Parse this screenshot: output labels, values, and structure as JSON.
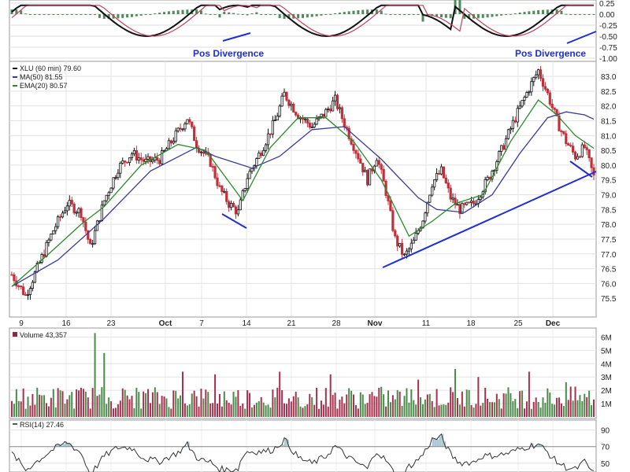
{
  "chart_data": [
    {
      "type": "histogram-oscillator",
      "ylim": [
        -1.0,
        0.25
      ],
      "ticks": [
        "0.25",
        "0.00",
        "-0.25",
        "-0.50",
        "-0.75",
        "-1.00"
      ],
      "annotations": [
        "Pos Divergence",
        "Pos Divergence"
      ]
    },
    {
      "type": "candlestick",
      "legend": [
        {
          "label": "XLU (60 min) 79.60",
          "color": "#111111"
        },
        {
          "label": "MA(50) 81.55",
          "color": "#3a3a9a"
        },
        {
          "label": "EMA(20) 80.57",
          "color": "#2a8a2a"
        }
      ],
      "ylim": [
        75.0,
        83.4
      ],
      "yticks": [
        "83.0",
        "82.5",
        "82.0",
        "81.5",
        "81.0",
        "80.5",
        "80.0",
        "79.5",
        "79.0",
        "78.5",
        "78.0",
        "77.5",
        "77.0",
        "76.5",
        "76.0",
        "75.5"
      ],
      "xticks": [
        "9",
        "16",
        "23",
        "Oct",
        "7",
        "14",
        "21",
        "28",
        "Nov",
        "11",
        "18",
        "25",
        "Dec"
      ],
      "price_path": [
        [
          0,
          76.3
        ],
        [
          3,
          75.6
        ],
        [
          6,
          76.7
        ],
        [
          9,
          77.8
        ],
        [
          12,
          78.7
        ],
        [
          15,
          78.4
        ],
        [
          17,
          77.2
        ],
        [
          20,
          78.8
        ],
        [
          23,
          79.9
        ],
        [
          26,
          80.4
        ],
        [
          29,
          80.1
        ],
        [
          32,
          80.2
        ],
        [
          35,
          80.9
        ],
        [
          38,
          81.6
        ],
        [
          40,
          80.7
        ],
        [
          43,
          80.1
        ],
        [
          45,
          79.2
        ],
        [
          47,
          78.7
        ],
        [
          49,
          78.4
        ],
        [
          51,
          79.6
        ],
        [
          54,
          80.5
        ],
        [
          57,
          81.5
        ],
        [
          59,
          82.4
        ],
        [
          62,
          81.7
        ],
        [
          65,
          81.3
        ],
        [
          68,
          81.8
        ],
        [
          70,
          82.2
        ],
        [
          72,
          81.4
        ],
        [
          75,
          80.3
        ],
        [
          77,
          79.5
        ],
        [
          79,
          80.3
        ],
        [
          81,
          79.1
        ],
        [
          83,
          77.5
        ],
        [
          85,
          76.9
        ],
        [
          87,
          77.4
        ],
        [
          89,
          78.2
        ],
        [
          91,
          79.4
        ],
        [
          93,
          79.8
        ],
        [
          95,
          78.9
        ],
        [
          97,
          78.5
        ],
        [
          100,
          78.7
        ],
        [
          103,
          79.5
        ],
        [
          106,
          80.5
        ],
        [
          109,
          81.6
        ],
        [
          112,
          82.6
        ],
        [
          114,
          83.2
        ],
        [
          116,
          82.4
        ],
        [
          118,
          81.5
        ],
        [
          120,
          80.8
        ],
        [
          122,
          80.3
        ],
        [
          124,
          80.6
        ],
        [
          126,
          79.6
        ]
      ],
      "ma50_path": [
        [
          0,
          75.9
        ],
        [
          10,
          76.8
        ],
        [
          20,
          78.2
        ],
        [
          30,
          79.8
        ],
        [
          40,
          80.6
        ],
        [
          44,
          80.3
        ],
        [
          52,
          79.9
        ],
        [
          58,
          80.3
        ],
        [
          65,
          81.2
        ],
        [
          72,
          81.3
        ],
        [
          80,
          80.2
        ],
        [
          88,
          78.9
        ],
        [
          92,
          78.5
        ],
        [
          98,
          78.4
        ],
        [
          104,
          79.0
        ],
        [
          110,
          80.4
        ],
        [
          116,
          81.6
        ],
        [
          120,
          81.8
        ],
        [
          124,
          81.7
        ],
        [
          126,
          81.55
        ]
      ],
      "ema20_path": [
        [
          0,
          75.9
        ],
        [
          8,
          77.0
        ],
        [
          15,
          78.0
        ],
        [
          20,
          78.6
        ],
        [
          28,
          80.0
        ],
        [
          36,
          80.7
        ],
        [
          42,
          80.5
        ],
        [
          50,
          78.8
        ],
        [
          56,
          80.6
        ],
        [
          62,
          81.6
        ],
        [
          68,
          81.6
        ],
        [
          74,
          80.8
        ],
        [
          80,
          79.5
        ],
        [
          86,
          77.6
        ],
        [
          91,
          78.1
        ],
        [
          96,
          78.7
        ],
        [
          102,
          79.0
        ],
        [
          108,
          80.8
        ],
        [
          114,
          82.2
        ],
        [
          118,
          81.7
        ],
        [
          122,
          81.0
        ],
        [
          126,
          80.57
        ]
      ]
    },
    {
      "type": "bar",
      "legend": [
        {
          "label": "Volume 43,357",
          "color": "#8a2a4a"
        }
      ],
      "ylim": [
        0,
        6.5
      ],
      "yticks": [
        "6M",
        "5M",
        "4M",
        "3M",
        "2M",
        "1M"
      ],
      "spikes": [
        [
          18,
          6.3
        ],
        [
          20,
          4.8
        ],
        [
          37,
          3.4
        ],
        [
          44,
          3.2
        ],
        [
          58,
          3.4
        ],
        [
          69,
          3.2
        ],
        [
          88,
          2.8
        ],
        [
          96,
          3.6
        ],
        [
          101,
          3.0
        ],
        [
          112,
          3.4
        ],
        [
          120,
          2.6
        ]
      ]
    },
    {
      "type": "line",
      "legend": [
        {
          "label": "RSI(14) 27.46",
          "color": "#555555"
        }
      ],
      "ylim": [
        30,
        100
      ],
      "yticks": [
        "90",
        "70",
        "50"
      ]
    }
  ]
}
